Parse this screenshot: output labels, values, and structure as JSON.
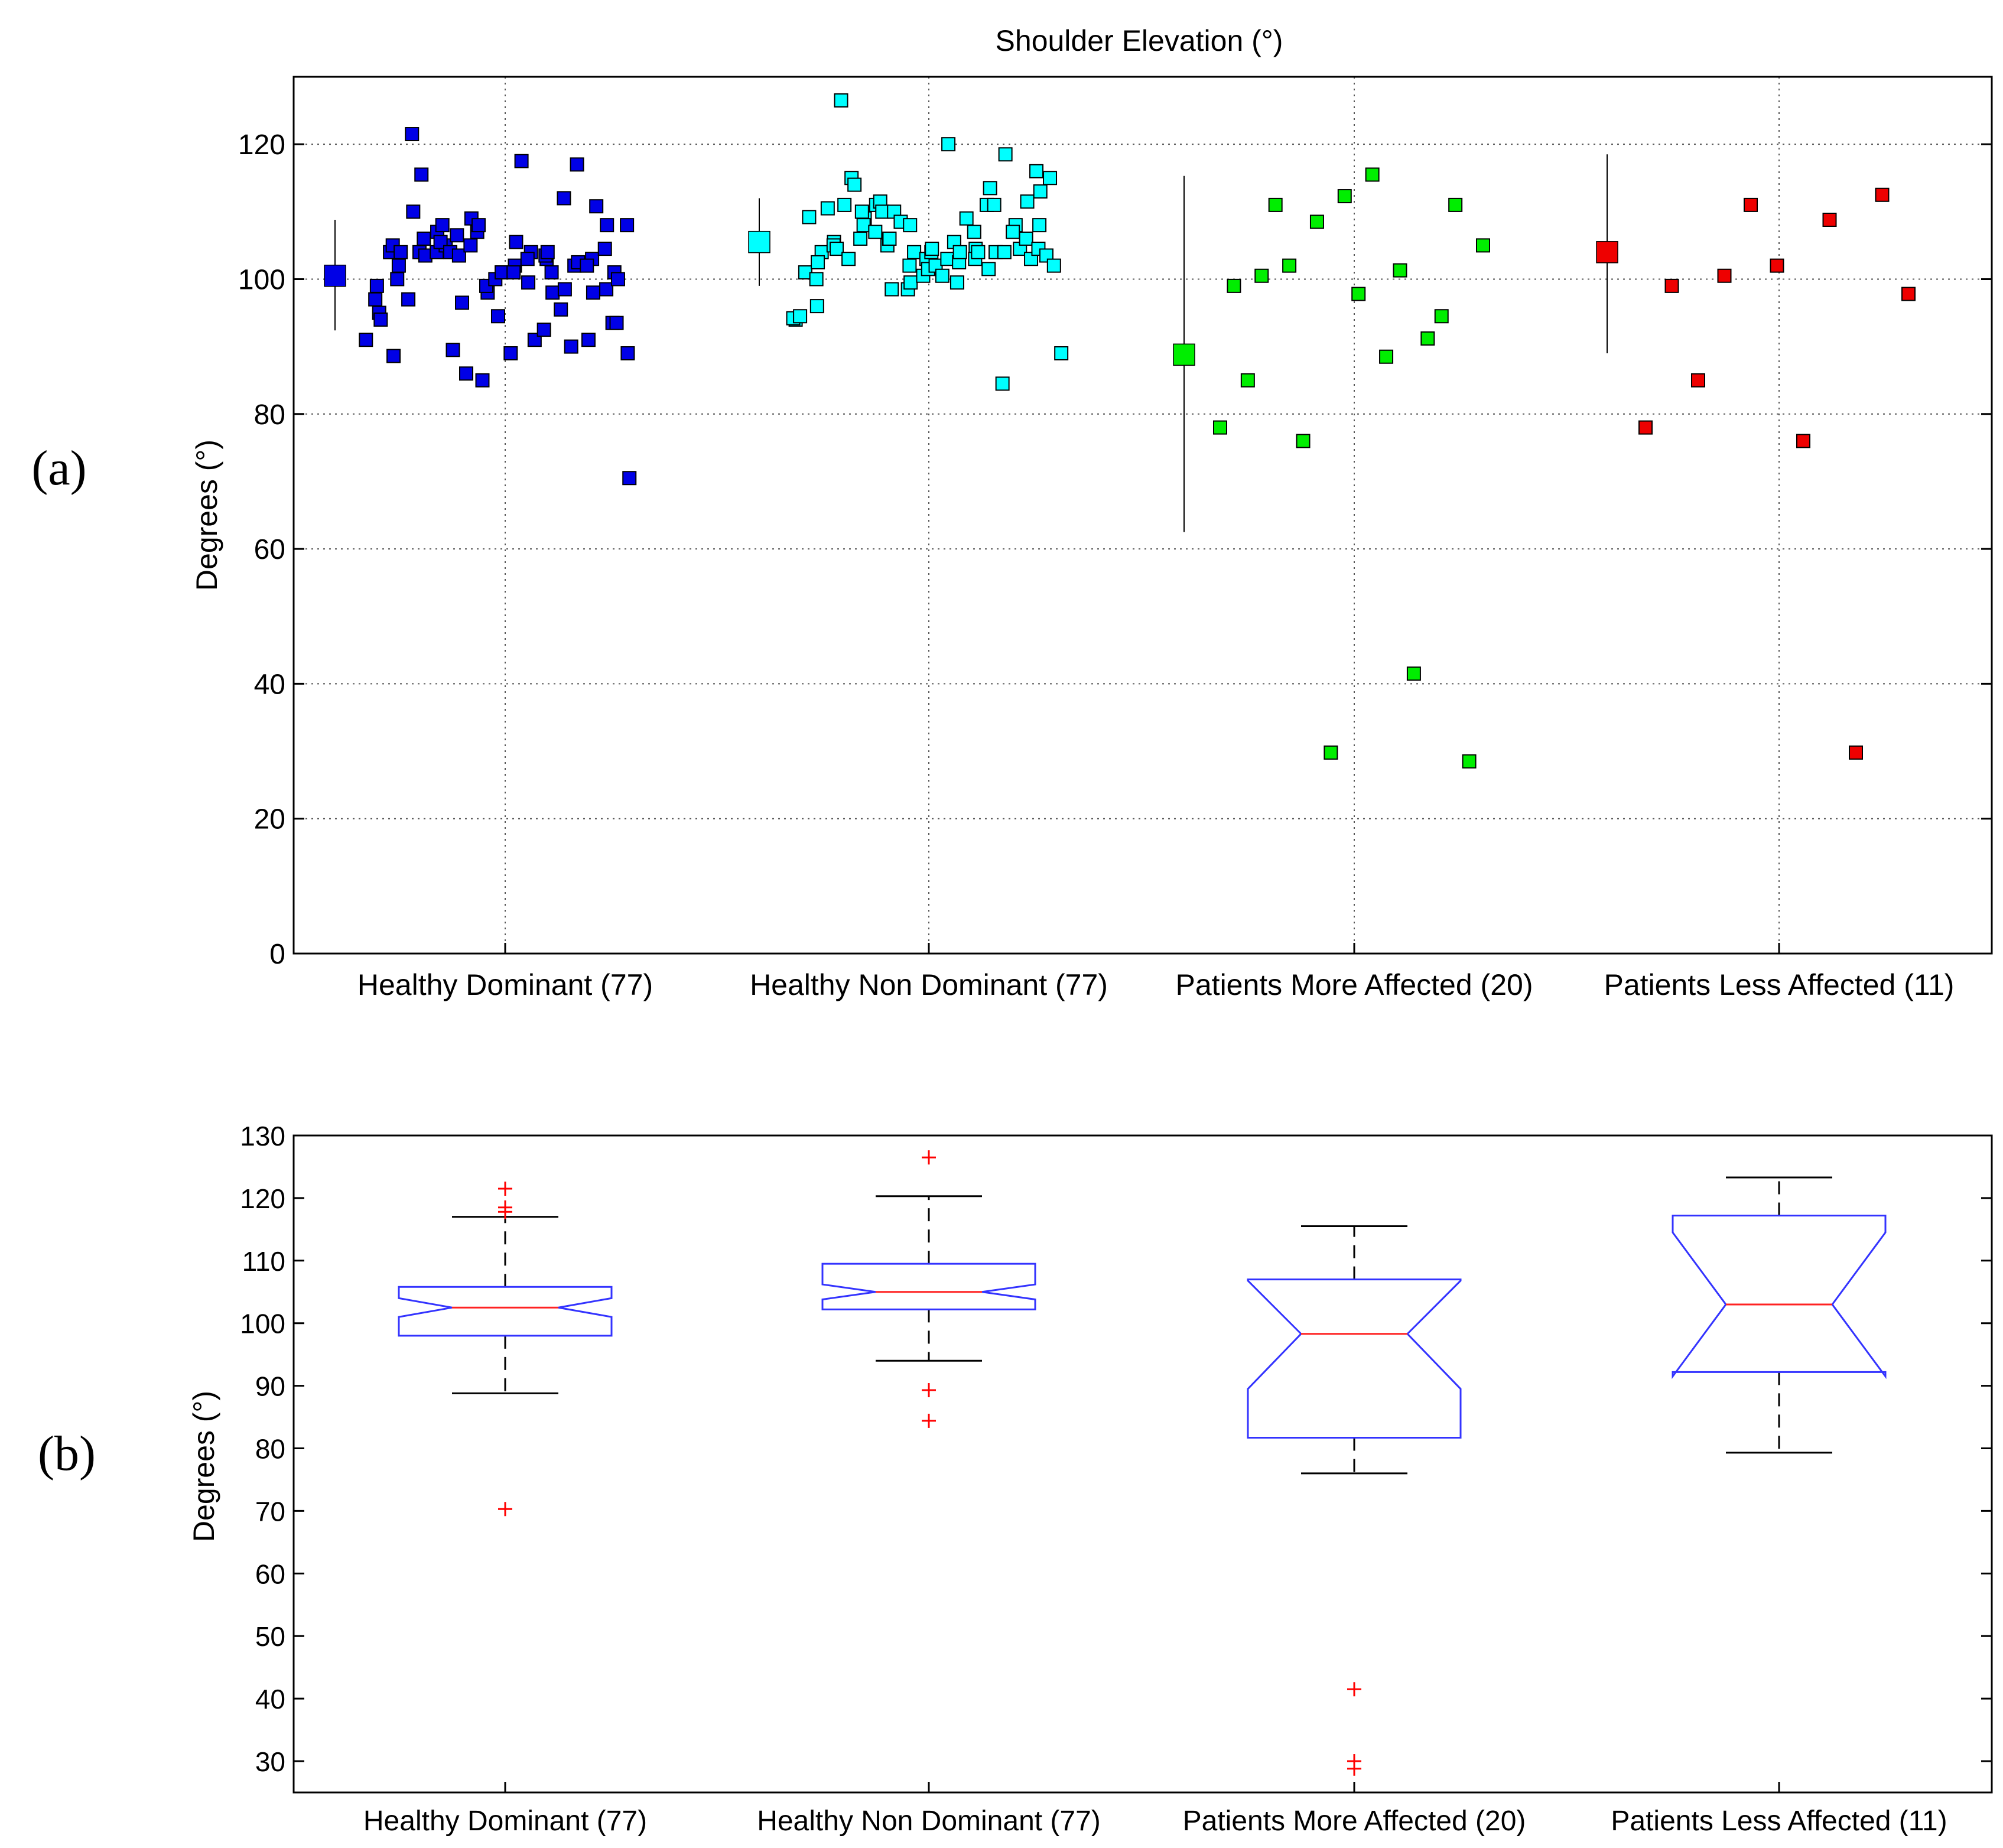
{
  "figure": {
    "panel_a_label": "(a)",
    "panel_b_label": "(b)"
  },
  "colors": {
    "healthy_dominant": "#0000e6",
    "healthy_non_dominant": "#00ffff",
    "patients_more": "#00ee00",
    "patients_less": "#ee0000",
    "box_outline": "#3333ff",
    "median": "#ff2222",
    "outlier": "#ff0000",
    "whisker": "#000000",
    "grid": "#555555"
  },
  "chart_data": [
    {
      "type": "scatter",
      "title": "Shoulder Elevation (°)",
      "xlabel": "",
      "ylabel": "Degrees (°)",
      "ylim": [
        0,
        130
      ],
      "yticks": [
        0,
        20,
        40,
        60,
        80,
        100,
        120
      ],
      "grid": true,
      "categories": [
        "Healthy Dominant (77)",
        "Healthy Non Dominant (77)",
        "Patients More Affected (20)",
        "Patients Less Affected (11)"
      ],
      "series": [
        {
          "name": "Healthy Dominant (77)",
          "color_key": "healthy_dominant",
          "mean": 100.5,
          "sd_low": 92.4,
          "sd_high": 108.8,
          "values": [
            91.0,
            97.0,
            99.0,
            95.0,
            94.0,
            104.0,
            105.0,
            88.6,
            100.0,
            104.0,
            102.0,
            97.0,
            121.5,
            110.0,
            115.5,
            104.0,
            106.0,
            103.5,
            104.0,
            107.0,
            108.0,
            105.0,
            105.5,
            104.0,
            106.5,
            89.5,
            96.5,
            103.5,
            105.0,
            86.0,
            109.0,
            107.0,
            108.0,
            85.0,
            98.0,
            99.0,
            100.0,
            101.0,
            94.5,
            101.0,
            89.0,
            102.0,
            105.5,
            101.0,
            117.5,
            99.5,
            104.0,
            103.0,
            91.0,
            92.5,
            103.0,
            103.5,
            104.0,
            98.0,
            101.0,
            112.0,
            95.5,
            98.5,
            90.0,
            102.0,
            117.0,
            102.5,
            91.0,
            103.0,
            102.0,
            110.8,
            98.0,
            98.5,
            104.5,
            108.0,
            93.5,
            101.0,
            100.0,
            93.5,
            89.0,
            108.0,
            70.5
          ]
        },
        {
          "name": "Healthy Non Dominant (77)",
          "color_key": "healthy_non_dominant",
          "mean": 105.5,
          "sd_low": 99.0,
          "sd_high": 112.0,
          "values": [
            94.0,
            94.2,
            94.5,
            109.2,
            101.0,
            100.0,
            96.0,
            104.0,
            102.5,
            110.5,
            105.5,
            105.0,
            104.5,
            126.5,
            111.0,
            115.0,
            114.0,
            103.0,
            106.0,
            109.0,
            110.0,
            108.0,
            111.0,
            107.0,
            111.5,
            110.0,
            105.0,
            106.0,
            106.0,
            98.5,
            110.0,
            108.5,
            102.0,
            98.5,
            108.0,
            99.5,
            104.0,
            100.5,
            103.0,
            101.5,
            104.0,
            104.5,
            102.0,
            120.0,
            100.5,
            103.0,
            105.5,
            99.5,
            102.5,
            104.0,
            109.0,
            104.5,
            107.0,
            103.0,
            104.0,
            113.5,
            111.0,
            101.5,
            104.0,
            111.0,
            84.5,
            104.0,
            118.5,
            108.0,
            107.0,
            104.5,
            111.5,
            103.0,
            106.0,
            104.5,
            108.0,
            116.0,
            113.0,
            103.5,
            102.0,
            115.0,
            89.0
          ]
        },
        {
          "name": "Patients More Affected (20)",
          "color_key": "patients_more",
          "mean": 88.8,
          "sd_low": 62.5,
          "sd_high": 115.3,
          "values": [
            78.0,
            99.0,
            85.0,
            100.5,
            111.0,
            102.0,
            76.0,
            108.5,
            29.8,
            112.3,
            97.8,
            115.5,
            88.5,
            101.3,
            41.5,
            91.2,
            94.5,
            111.0,
            28.5,
            105.0
          ]
        },
        {
          "name": "Patients Less Affected (11)",
          "color_key": "patients_less",
          "mean": 104.0,
          "sd_low": 89.0,
          "sd_high": 118.5,
          "values": [
            78.0,
            99.0,
            85.0,
            100.5,
            111.0,
            102.0,
            76.0,
            108.8,
            29.8,
            112.5,
            97.8
          ]
        }
      ]
    },
    {
      "type": "box",
      "title": "",
      "xlabel": "",
      "ylabel": "Degrees (°)",
      "ylim": [
        25,
        130
      ],
      "yticks": [
        30,
        40,
        50,
        60,
        70,
        80,
        90,
        100,
        110,
        120,
        130
      ],
      "notched": true,
      "categories": [
        "Healthy Dominant (77)",
        "Healthy Non Dominant (77)",
        "Patients More Affected (20)",
        "Patients Less Affected (11)"
      ],
      "boxes": [
        {
          "name": "Healthy Dominant (77)",
          "whisker_low": 88.8,
          "q1": 98.0,
          "notch_low": 101.0,
          "median": 102.5,
          "notch_high": 104.0,
          "q3": 105.8,
          "whisker_high": 117.0,
          "outliers": [
            121.5,
            118.5,
            117.8,
            70.3
          ]
        },
        {
          "name": "Healthy Non Dominant (77)",
          "whisker_low": 94.0,
          "q1": 102.2,
          "notch_low": 103.8,
          "median": 105.0,
          "notch_high": 106.2,
          "q3": 109.5,
          "whisker_high": 120.3,
          "outliers": [
            126.5,
            89.3,
            84.4
          ]
        },
        {
          "name": "Patients More Affected (20)",
          "whisker_low": 76.0,
          "q1": 81.7,
          "notch_low": 89.5,
          "median": 98.3,
          "notch_high": 106.8,
          "q3": 107.0,
          "whisker_high": 115.5,
          "outliers": [
            41.5,
            30.0,
            28.8
          ]
        },
        {
          "name": "Patients Less Affected (11)",
          "whisker_low": 79.3,
          "q1": 92.2,
          "notch_low": 91.5,
          "median": 103.0,
          "notch_high": 114.5,
          "q3": 117.2,
          "whisker_high": 123.3,
          "outliers": []
        }
      ]
    }
  ]
}
